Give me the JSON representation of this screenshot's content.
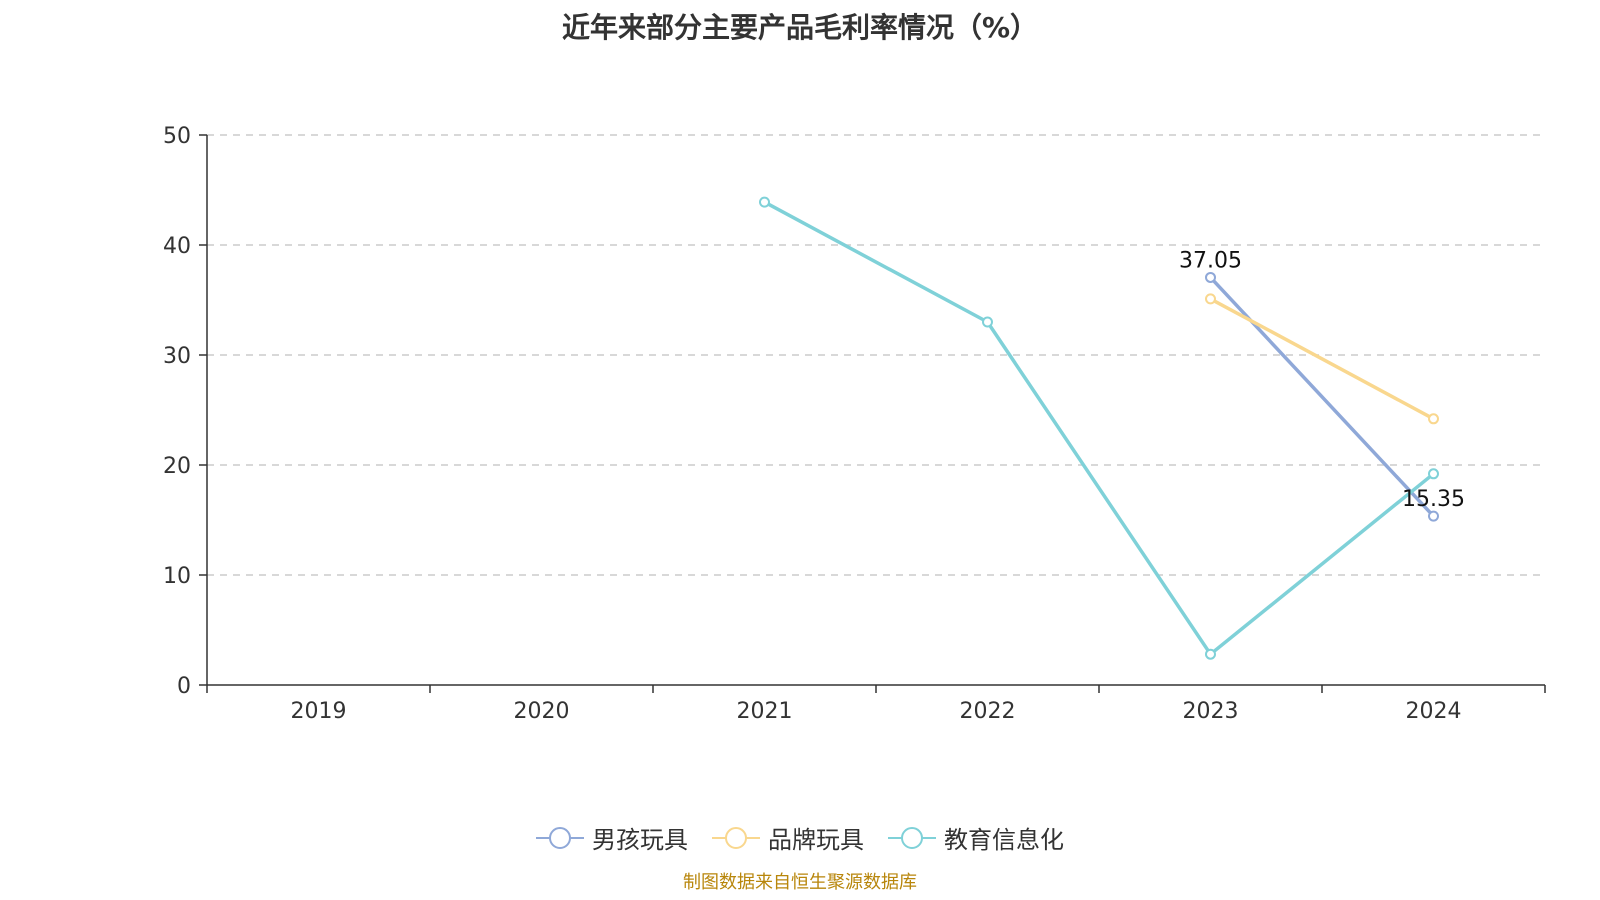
{
  "chart_data": {
    "type": "line",
    "title": "近年来部分主要产品毛利率情况（%）",
    "categories": [
      "2019",
      "2020",
      "2021",
      "2022",
      "2023",
      "2024"
    ],
    "ylim": [
      0,
      50
    ],
    "yticks": [
      0,
      10,
      20,
      30,
      40,
      50
    ],
    "grid": true,
    "legend_position": "bottom",
    "series": [
      {
        "name": "男孩玩具",
        "color": "#8fa8d8",
        "values": [
          null,
          null,
          null,
          null,
          37.05,
          15.35
        ],
        "labels": [
          "",
          "",
          "",
          "",
          "37.05",
          "15.35"
        ]
      },
      {
        "name": "品牌玩具",
        "color": "#f9d78e",
        "values": [
          null,
          null,
          null,
          null,
          35.1,
          24.2
        ],
        "labels": [
          "",
          "",
          "",
          "",
          "",
          ""
        ]
      },
      {
        "name": "教育信息化",
        "color": "#7fd1d8",
        "values": [
          null,
          null,
          43.9,
          33.0,
          2.8,
          19.2
        ],
        "labels": [
          "",
          "",
          "",
          "",
          "",
          ""
        ]
      }
    ]
  },
  "source": "制图数据来自恒生聚源数据库"
}
